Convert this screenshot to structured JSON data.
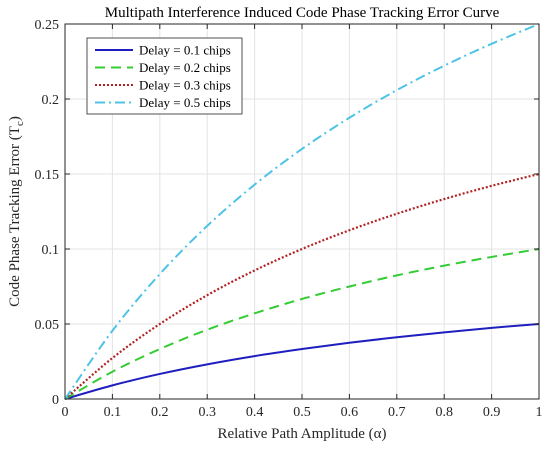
{
  "chart_data": {
    "type": "line",
    "title": "Multipath Interference Induced Code Phase Tracking Error Curve",
    "xlabel": "Relative Path Amplitude (α)",
    "ylabel": "Code Phase Tracking Error (T",
    "ylabel_subscript": "c",
    "ylabel_suffix": ")",
    "xlim": [
      0,
      1
    ],
    "ylim": [
      0,
      0.25
    ],
    "xticks": [
      0,
      0.1,
      0.2,
      0.3,
      0.4,
      0.5,
      0.6,
      0.7,
      0.8,
      0.9,
      1
    ],
    "xtick_labels": [
      "0",
      "0.1",
      "0.2",
      "0.3",
      "0.4",
      "0.5",
      "0.6",
      "0.7",
      "0.8",
      "0.9",
      "1"
    ],
    "yticks": [
      0,
      0.05,
      0.1,
      0.15,
      0.2,
      0.25
    ],
    "ytick_labels": [
      "0",
      "0.05",
      "0.1",
      "0.15",
      "0.2",
      "0.25"
    ],
    "grid": true,
    "legend_position": "top-left",
    "x": [
      0,
      0.1,
      0.2,
      0.3,
      0.4,
      0.5,
      0.6,
      0.7,
      0.8,
      0.9,
      1
    ],
    "series": [
      {
        "name": "Delay = 0.1 chips",
        "color": "#1f1fbf",
        "style": "solid",
        "values": [
          0,
          0.0091,
          0.0167,
          0.0231,
          0.0286,
          0.0333,
          0.0375,
          0.0412,
          0.0444,
          0.0474,
          0.05
        ]
      },
      {
        "name": "Delay = 0.2 chips",
        "color": "#33cc33",
        "style": "dashed",
        "values": [
          0,
          0.0182,
          0.0333,
          0.0462,
          0.0571,
          0.0667,
          0.075,
          0.0824,
          0.0889,
          0.0947,
          0.1
        ]
      },
      {
        "name": "Delay = 0.3 chips",
        "color": "#b22222",
        "style": "dotted",
        "values": [
          0,
          0.0273,
          0.05,
          0.0692,
          0.0857,
          0.1,
          0.1125,
          0.1235,
          0.1333,
          0.1421,
          0.15
        ]
      },
      {
        "name": "Delay = 0.5 chips",
        "color": "#4dc3e6",
        "style": "dashdot",
        "values": [
          0,
          0.0455,
          0.0833,
          0.1154,
          0.1429,
          0.1667,
          0.1875,
          0.2059,
          0.2222,
          0.2368,
          0.25
        ]
      }
    ]
  }
}
